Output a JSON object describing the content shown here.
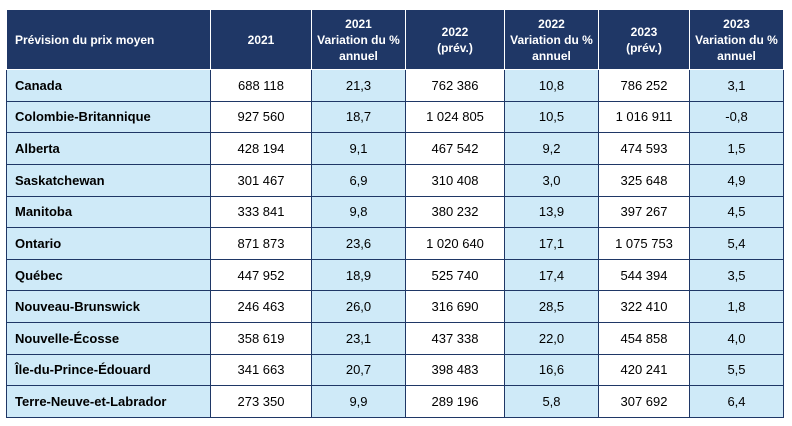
{
  "table": {
    "headers": [
      {
        "lines": [
          "Prévision du prix moyen"
        ]
      },
      {
        "lines": [
          "2021"
        ]
      },
      {
        "lines": [
          "2021",
          "Variation du %",
          "annuel"
        ]
      },
      {
        "lines": [
          "2022",
          "(prév.)"
        ]
      },
      {
        "lines": [
          "2022",
          "Variation du %",
          "annuel"
        ]
      },
      {
        "lines": [
          "2023",
          "(prév.)"
        ]
      },
      {
        "lines": [
          "2023",
          "Variation du %",
          "annuel"
        ]
      }
    ],
    "rows": [
      [
        "Canada",
        "688 118",
        "21,3",
        "762 386",
        "10,8",
        "786 252",
        "3,1"
      ],
      [
        "Colombie-Britannique",
        "927 560",
        "18,7",
        "1 024 805",
        "10,5",
        "1 016 911",
        "-0,8"
      ],
      [
        "Alberta",
        "428 194",
        "9,1",
        "467 542",
        "9,2",
        "474 593",
        "1,5"
      ],
      [
        "Saskatchewan",
        "301 467",
        "6,9",
        "310 408",
        "3,0",
        "325 648",
        "4,9"
      ],
      [
        "Manitoba",
        "333 841",
        "9,8",
        "380 232",
        "13,9",
        "397 267",
        "4,5"
      ],
      [
        "Ontario",
        "871 873",
        "23,6",
        "1 020 640",
        "17,1",
        "1 075 753",
        "5,4"
      ],
      [
        "Québec",
        "447 952",
        "18,9",
        "525 740",
        "17,4",
        "544 394",
        "3,5"
      ],
      [
        "Nouveau-Brunswick",
        "246 463",
        "26,0",
        "316 690",
        "28,5",
        "322 410",
        "1,8"
      ],
      [
        "Nouvelle-Écosse",
        "358 619",
        "23,1",
        "437 338",
        "22,0",
        "454 858",
        "4,0"
      ],
      [
        "Île-du-Prince-Édouard",
        "341 663",
        "20,7",
        "398 483",
        "16,6",
        "420 241",
        "5,5"
      ],
      [
        "Terre-Neuve-et-Labrador",
        "273 350",
        "9,9",
        "289 196",
        "5,8",
        "307 692",
        "6,4"
      ]
    ]
  },
  "colors": {
    "header_bg": "#1f3766",
    "header_text": "#ffffff",
    "label_bg": "#cfeaf8",
    "border": "#1f3766"
  }
}
